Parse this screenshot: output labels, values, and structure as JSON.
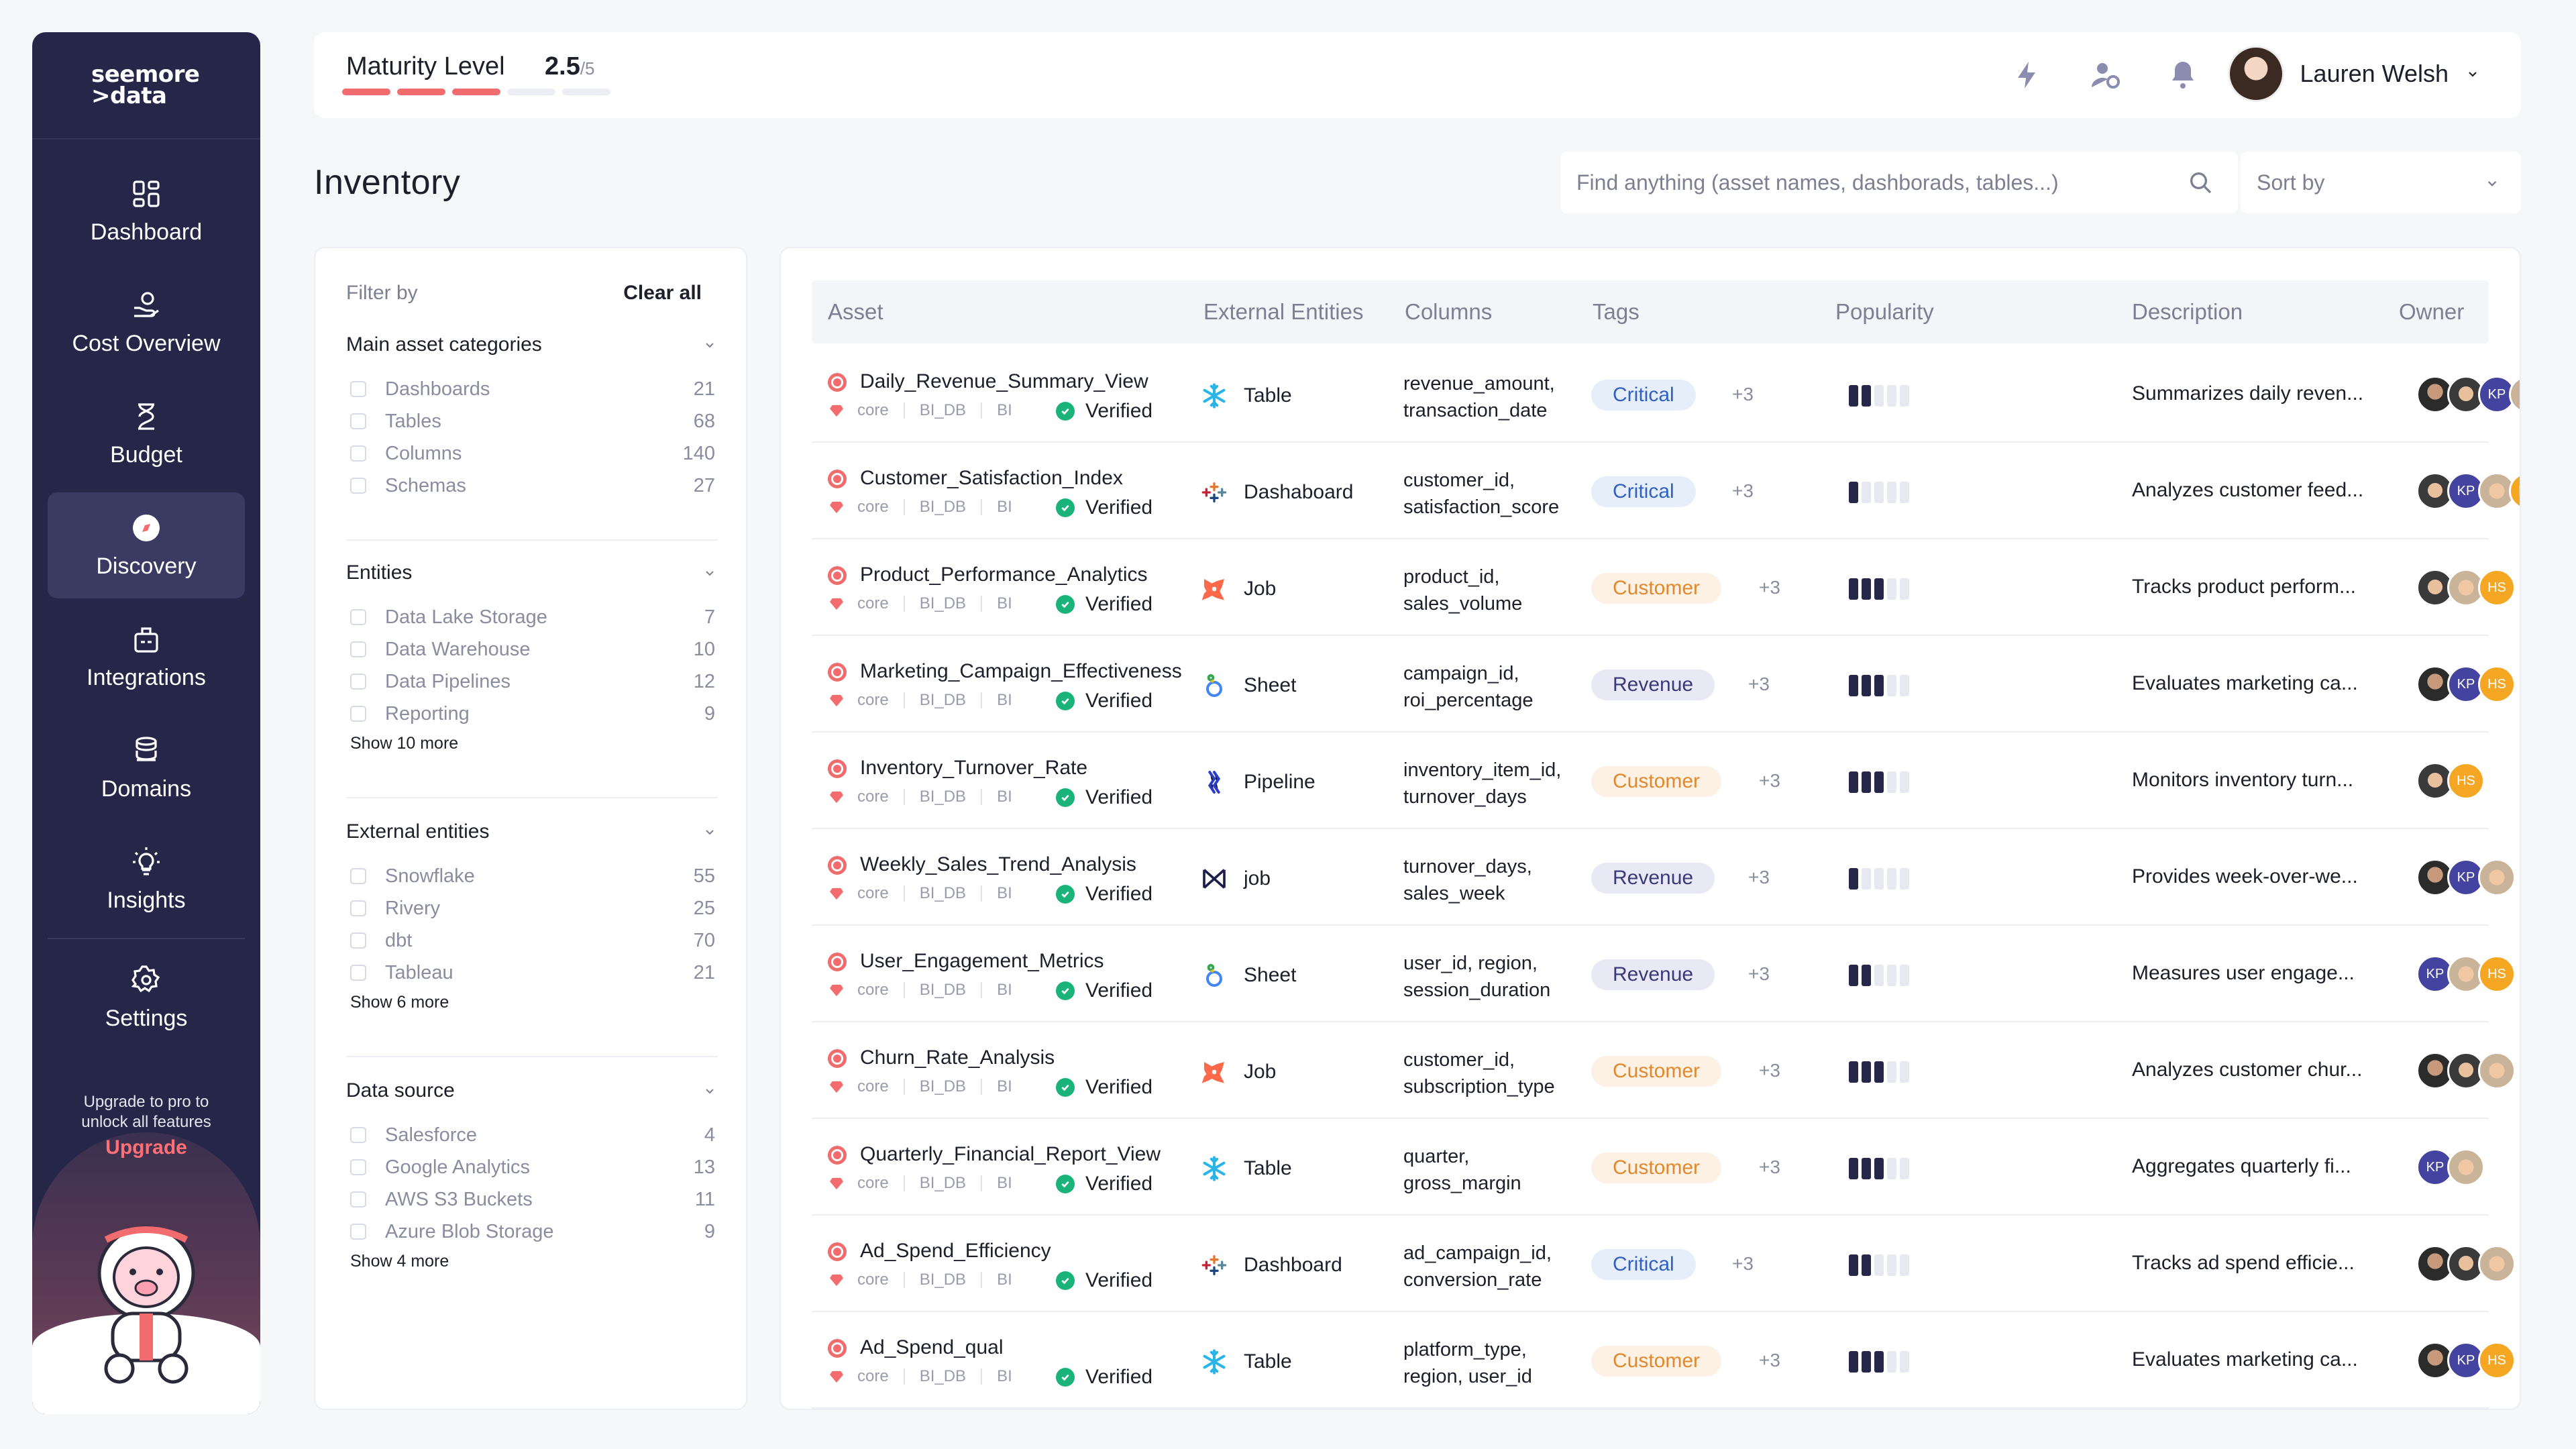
{
  "sidebar": {
    "logo_line1": "seemore",
    "logo_line2": ">data",
    "nav": [
      {
        "label": "Dashboard",
        "icon": "dashboard-icon"
      },
      {
        "label": "Cost Overview",
        "icon": "cost-icon"
      },
      {
        "label": "Budget",
        "icon": "budget-icon"
      },
      {
        "label": "Discovery",
        "icon": "discovery-icon",
        "active": true
      },
      {
        "label": "Integrations",
        "icon": "integrations-icon"
      },
      {
        "label": "Domains",
        "icon": "domains-icon"
      },
      {
        "label": "Insights",
        "icon": "insights-icon"
      },
      {
        "label": "Settings",
        "icon": "settings-icon"
      }
    ],
    "upgrade_text_1": "Upgrade to pro to",
    "upgrade_text_2": "unlock all features",
    "upgrade_link": "Upgrade"
  },
  "header": {
    "maturity_label": "Maturity Level",
    "maturity_value": "2.5",
    "maturity_max": "/5",
    "maturity_segments_on": 3,
    "maturity_segments_total": 5,
    "user_name": "Lauren Welsh"
  },
  "page": {
    "title": "Inventory",
    "search_placeholder": "Find anything (asset names, dashborads, tables...)",
    "sort_label": "Sort by"
  },
  "filters": {
    "filter_by": "Filter by",
    "clear_all": "Clear all",
    "groups": [
      {
        "title": "Main asset categories",
        "items": [
          {
            "name": "Dashboards",
            "count": "21"
          },
          {
            "name": "Tables",
            "count": "68"
          },
          {
            "name": "Columns",
            "count": "140"
          },
          {
            "name": "Schemas",
            "count": "27"
          }
        ],
        "more": ""
      },
      {
        "title": "Entities",
        "items": [
          {
            "name": "Data Lake Storage",
            "count": "7"
          },
          {
            "name": "Data Warehouse",
            "count": "10"
          },
          {
            "name": "Data Pipelines",
            "count": "12"
          },
          {
            "name": "Reporting",
            "count": "9"
          }
        ],
        "more": "Show 10 more"
      },
      {
        "title": "External entities",
        "items": [
          {
            "name": "Snowflake",
            "count": "55"
          },
          {
            "name": "Rivery",
            "count": "25"
          },
          {
            "name": "dbt",
            "count": "70"
          },
          {
            "name": "Tableau",
            "count": "21"
          }
        ],
        "more": "Show 6 more"
      },
      {
        "title": "Data source",
        "items": [
          {
            "name": "Salesforce",
            "count": "4"
          },
          {
            "name": "Google Analytics",
            "count": "13"
          },
          {
            "name": "AWS S3 Buckets",
            "count": "11"
          },
          {
            "name": "Azure Blob Storage",
            "count": "9"
          }
        ],
        "more": "Show 4 more"
      }
    ]
  },
  "table": {
    "headers": [
      "Asset",
      "External Entities",
      "Columns",
      "Tags",
      "Popularity",
      "Description",
      "Owner"
    ],
    "meta_labels": [
      "core",
      "BI_DB",
      "BI"
    ],
    "verified_label": "Verified",
    "rows": [
      {
        "name": "Daily_Revenue_Summary_View",
        "ext": "Table",
        "ext_icon": "snowflake-icon",
        "col1": "revenue_amount,",
        "col2": "transaction_date",
        "tag": "Critical",
        "tag_kind": "critical",
        "plus": "+3",
        "popularity": 2,
        "desc": "Summarizes daily reven...",
        "owners": [
          "dark",
          "man",
          "kp",
          "blond"
        ]
      },
      {
        "name": "Customer_Satisfaction_Index",
        "ext": "Dashaboard",
        "ext_icon": "tableau-icon",
        "col1": "customer_id,",
        "col2": "satisfaction_score",
        "tag": "Critical",
        "tag_kind": "critical",
        "plus": "+3",
        "popularity": 1,
        "desc": "Analyzes customer feed...",
        "owners": [
          "man",
          "kp",
          "blond",
          "hs"
        ]
      },
      {
        "name": "Product_Performance_Analytics",
        "ext": "Job",
        "ext_icon": "dbt-icon",
        "col1": "product_id,",
        "col2": "sales_volume",
        "tag": "Customer",
        "tag_kind": "customer",
        "plus": "+3",
        "popularity": 3,
        "desc": "Tracks product perform...",
        "owners": [
          "man",
          "blond",
          "hs"
        ]
      },
      {
        "name": "Marketing_Campaign_Effectiveness",
        "ext": "Sheet",
        "ext_icon": "looker-icon",
        "col1": "campaign_id,",
        "col2": "roi_percentage",
        "tag": "Revenue",
        "tag_kind": "revenue",
        "plus": "+3",
        "popularity": 3,
        "desc": "Evaluates marketing ca...",
        "owners": [
          "dark",
          "kp",
          "hs"
        ]
      },
      {
        "name": "Inventory_Turnover_Rate",
        "ext": "Pipeline",
        "ext_icon": "rivery-icon",
        "col1": "inventory_item_id,",
        "col2": "turnover_days",
        "tag": "Customer",
        "tag_kind": "customer",
        "plus": "+3",
        "popularity": 3,
        "desc": "Monitors inventory turn...",
        "owners": [
          "man",
          "hs"
        ]
      },
      {
        "name": "Weekly_Sales_Trend_Analysis",
        "ext": "job",
        "ext_icon": "airflow-icon",
        "col1": "turnover_days,",
        "col2": "sales_week",
        "tag": "Revenue",
        "tag_kind": "revenue",
        "plus": "+3",
        "popularity": 1,
        "desc": "Provides week-over-we...",
        "owners": [
          "dark",
          "kp",
          "blond"
        ]
      },
      {
        "name": "User_Engagement_Metrics",
        "ext": "Sheet",
        "ext_icon": "looker-icon",
        "col1": "user_id, region,",
        "col2": "session_duration",
        "tag": "Revenue",
        "tag_kind": "revenue",
        "plus": "+3",
        "popularity": 2,
        "desc": "Measures user engage...",
        "owners": [
          "kp",
          "blond",
          "hs"
        ]
      },
      {
        "name": "Churn_Rate_Analysis",
        "ext": "Job",
        "ext_icon": "dbt-icon",
        "col1": "customer_id,",
        "col2": "subscription_type",
        "tag": "Customer",
        "tag_kind": "customer",
        "plus": "+3",
        "popularity": 3,
        "desc": "Analyzes customer chur...",
        "owners": [
          "dark",
          "man",
          "blond"
        ]
      },
      {
        "name": "Quarterly_Financial_Report_View",
        "ext": "Table",
        "ext_icon": "snowflake-icon",
        "col1": "quarter,",
        "col2": "gross_margin",
        "tag": "Customer",
        "tag_kind": "customer",
        "plus": "+3",
        "popularity": 3,
        "desc": "Aggregates quarterly fi...",
        "owners": [
          "kp",
          "blond"
        ]
      },
      {
        "name": "Ad_Spend_Efficiency",
        "ext": "Dashboard",
        "ext_icon": "tableau-icon",
        "col1": "ad_campaign_id,",
        "col2": "conversion_rate",
        "tag": "Critical",
        "tag_kind": "critical",
        "plus": "+3",
        "popularity": 2,
        "desc": "Tracks ad spend efficie...",
        "owners": [
          "dark",
          "man",
          "blond"
        ]
      },
      {
        "name": "Ad_Spend_qual",
        "ext": "Table",
        "ext_icon": "snowflake-icon",
        "col1": "platform_type,",
        "col2": "region, user_id",
        "tag": "Customer",
        "tag_kind": "customer",
        "plus": "+3",
        "popularity": 3,
        "desc": "Evaluates marketing ca...",
        "owners": [
          "dark",
          "kp",
          "hs"
        ]
      }
    ]
  },
  "colors": {
    "sidebar_bg": "#262648",
    "accent_red": "#f26b6f",
    "verified_green": "#1ab37a",
    "critical": "#3060c0",
    "customer": "#e0892c",
    "revenue": "#3a3a7a"
  }
}
